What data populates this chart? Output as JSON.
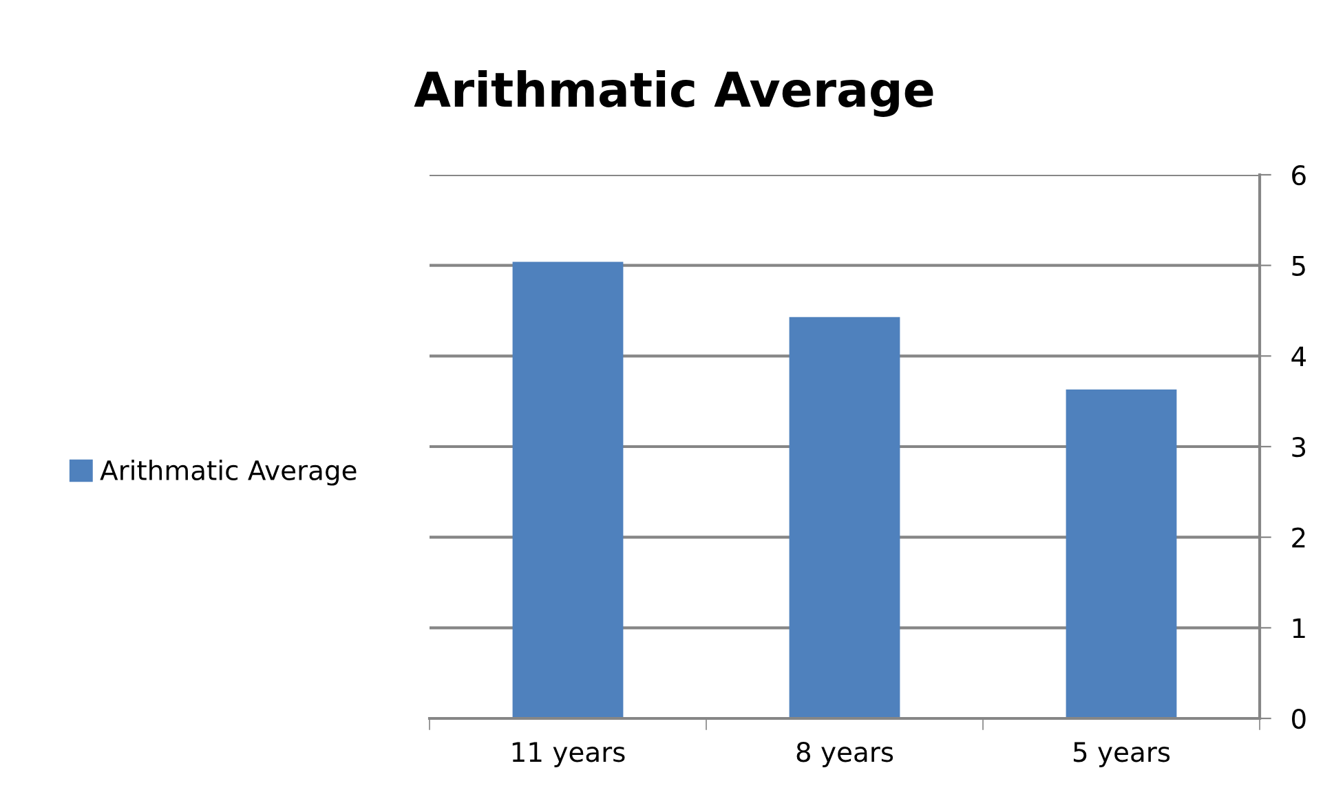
{
  "chart_data": {
    "type": "bar",
    "title": "Arithmatic Average",
    "categories": [
      "11 years",
      "8 years",
      "5 years"
    ],
    "series": [
      {
        "name": "Arithmatic Average",
        "color": "#4f81bd",
        "values": [
          5.04,
          4.43,
          3.63
        ]
      }
    ],
    "ylim": [
      0,
      6
    ],
    "yticks": [
      0,
      1,
      2,
      3,
      4,
      5,
      6
    ],
    "grid": "y",
    "legend": "left"
  }
}
